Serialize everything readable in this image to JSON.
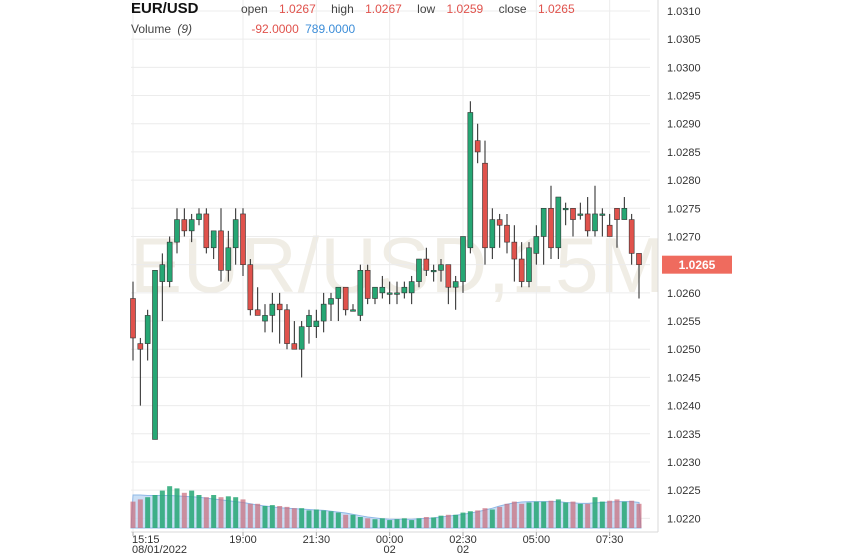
{
  "header": {
    "symbol": "EUR/USD",
    "open_label": "open",
    "open_value": "1.0267",
    "high_label": "high",
    "high_value": "1.0267",
    "low_label": "low",
    "low_value": "1.0259",
    "close_label": "close",
    "close_value": "1.0265",
    "volume_label": "Volume",
    "volume_period": "(9)",
    "volume_value1": "-92.0000",
    "volume_value2": "789.0000"
  },
  "watermark": "EUR/USD,15M",
  "colors": {
    "up": "#26a774",
    "down": "#e0524c",
    "volume_area": "#b8d4f2",
    "price_badge": "#ef6b5e"
  },
  "chart_data": {
    "type": "candlestick",
    "instrument": "EUR/USD",
    "timeframe": "15M",
    "y_axis": {
      "ylim": [
        1.0218,
        1.0312
      ],
      "ticks": [
        "1.0310",
        "1.0305",
        "1.0300",
        "1.0295",
        "1.0290",
        "1.0285",
        "1.0280",
        "1.0275",
        "1.0270",
        "1.0265",
        "1.0260",
        "1.0255",
        "1.0250",
        "1.0245",
        "1.0240",
        "1.0235",
        "1.0230",
        "1.0225",
        "1.0220"
      ],
      "current_price": "1.0265"
    },
    "x_axis": {
      "ticks": [
        {
          "index": 0,
          "label": "15:15",
          "sublabel": "08/01/2022"
        },
        {
          "index": 15,
          "label": "19:00",
          "sublabel": ""
        },
        {
          "index": 25,
          "label": "21:30",
          "sublabel": ""
        },
        {
          "index": 35,
          "label": "00:00",
          "sublabel": "02"
        },
        {
          "index": 45,
          "label": "02:30",
          "sublabel": "02"
        },
        {
          "index": 55,
          "label": "05:00",
          "sublabel": ""
        },
        {
          "index": 65,
          "label": "07:30",
          "sublabel": ""
        }
      ]
    },
    "candles": [
      [
        1.0259,
        1.0262,
        1.0248,
        1.0252
      ],
      [
        1.0251,
        1.0252,
        1.024,
        1.025
      ],
      [
        1.0251,
        1.0257,
        1.0248,
        1.0256
      ],
      [
        1.0234,
        1.0264,
        1.0234,
        1.0264
      ],
      [
        1.0262,
        1.0267,
        1.0255,
        1.0265
      ],
      [
        1.0262,
        1.027,
        1.0261,
        1.0269
      ],
      [
        1.0269,
        1.0275,
        1.0267,
        1.0273
      ],
      [
        1.0273,
        1.0275,
        1.027,
        1.0271
      ],
      [
        1.0271,
        1.0274,
        1.0269,
        1.0273
      ],
      [
        1.0273,
        1.0275,
        1.0272,
        1.0274
      ],
      [
        1.0274,
        1.0275,
        1.0267,
        1.0268
      ],
      [
        1.0268,
        1.0271,
        1.0266,
        1.0271
      ],
      [
        1.0271,
        1.0275,
        1.0262,
        1.0264
      ],
      [
        1.0264,
        1.0271,
        1.0262,
        1.0268
      ],
      [
        1.0268,
        1.0275,
        1.0265,
        1.0273
      ],
      [
        1.0274,
        1.0275,
        1.0263,
        1.0265
      ],
      [
        1.0265,
        1.0266,
        1.0256,
        1.0257
      ],
      [
        1.0257,
        1.0261,
        1.0256,
        1.0256
      ],
      [
        1.0255,
        1.0258,
        1.0253,
        1.0256
      ],
      [
        1.0256,
        1.026,
        1.0253,
        1.0258
      ],
      [
        1.0258,
        1.026,
        1.0251,
        1.0257
      ],
      [
        1.0257,
        1.0258,
        1.025,
        1.0251
      ],
      [
        1.0251,
        1.0255,
        1.025,
        1.025
      ],
      [
        1.025,
        1.0255,
        1.0245,
        1.0254
      ],
      [
        1.0254,
        1.0257,
        1.0251,
        1.0256
      ],
      [
        1.0254,
        1.0257,
        1.0252,
        1.0255
      ],
      [
        1.0255,
        1.026,
        1.0253,
        1.0258
      ],
      [
        1.0258,
        1.026,
        1.0255,
        1.0259
      ],
      [
        1.0259,
        1.0261,
        1.0255,
        1.0261
      ],
      [
        1.0261,
        1.0261,
        1.0256,
        1.0257
      ],
      [
        1.0257,
        1.0258,
        1.0257,
        1.0257
      ],
      [
        1.0256,
        1.0265,
        1.0255,
        1.0264
      ],
      [
        1.0264,
        1.0265,
        1.0258,
        1.0259
      ],
      [
        1.0259,
        1.0261,
        1.0258,
        1.0261
      ],
      [
        1.026,
        1.0263,
        1.0259,
        1.0261
      ],
      [
        1.026,
        1.0262,
        1.0258,
        1.026
      ],
      [
        1.026,
        1.0262,
        1.0258,
        1.026
      ],
      [
        1.026,
        1.0262,
        1.0259,
        1.0261
      ],
      [
        1.026,
        1.0263,
        1.0258,
        1.0262
      ],
      [
        1.0262,
        1.0266,
        1.0261,
        1.0266
      ],
      [
        1.0266,
        1.0268,
        1.0263,
        1.0264
      ],
      [
        1.0264,
        1.0265,
        1.0262,
        1.0264
      ],
      [
        1.0264,
        1.0266,
        1.0262,
        1.0265
      ],
      [
        1.0265,
        1.0265,
        1.0258,
        1.0261
      ],
      [
        1.0261,
        1.0263,
        1.0257,
        1.0262
      ],
      [
        1.0262,
        1.027,
        1.026,
        1.027
      ],
      [
        1.0268,
        1.0294,
        1.0267,
        1.0292
      ],
      [
        1.0287,
        1.029,
        1.0283,
        1.0285
      ],
      [
        1.0283,
        1.0287,
        1.0265,
        1.0268
      ],
      [
        1.0268,
        1.0275,
        1.0266,
        1.0273
      ],
      [
        1.0273,
        1.0274,
        1.0268,
        1.0272
      ],
      [
        1.0272,
        1.0274,
        1.0267,
        1.0269
      ],
      [
        1.0269,
        1.0272,
        1.0262,
        1.0266
      ],
      [
        1.0266,
        1.0269,
        1.0261,
        1.0262
      ],
      [
        1.0262,
        1.0269,
        1.0261,
        1.0268
      ],
      [
        1.0267,
        1.0272,
        1.0265,
        1.027
      ],
      [
        1.027,
        1.0275,
        1.0265,
        1.0275
      ],
      [
        1.0275,
        1.0279,
        1.0266,
        1.0268
      ],
      [
        1.0268,
        1.0277,
        1.0266,
        1.0277
      ],
      [
        1.0275,
        1.0276,
        1.0272,
        1.0275
      ],
      [
        1.0275,
        1.0275,
        1.027,
        1.0273
      ],
      [
        1.0274,
        1.0276,
        1.0273,
        1.0274
      ],
      [
        1.0274,
        1.0277,
        1.027,
        1.0271
      ],
      [
        1.0271,
        1.0279,
        1.027,
        1.0274
      ],
      [
        1.0274,
        1.0275,
        1.027,
        1.0274
      ],
      [
        1.0272,
        1.0274,
        1.027,
        1.027
      ],
      [
        1.0275,
        1.0275,
        1.0268,
        1.0273
      ],
      [
        1.0273,
        1.0277,
        1.0273,
        1.0275
      ],
      [
        1.0273,
        1.0274,
        1.0265,
        1.0267
      ],
      [
        1.0267,
        1.0267,
        1.0259,
        1.0265
      ]
    ],
    "volume_level": [
      0.6,
      0.65,
      0.7,
      0.75,
      0.85,
      0.95,
      0.9,
      0.8,
      0.85,
      0.75,
      0.7,
      0.75,
      0.7,
      0.72,
      0.7,
      0.65,
      0.55,
      0.55,
      0.5,
      0.52,
      0.5,
      0.48,
      0.45,
      0.45,
      0.4,
      0.42,
      0.4,
      0.38,
      0.35,
      0.3,
      0.3,
      0.25,
      0.22,
      0.2,
      0.22,
      0.18,
      0.2,
      0.22,
      0.18,
      0.22,
      0.25,
      0.24,
      0.28,
      0.3,
      0.3,
      0.35,
      0.38,
      0.4,
      0.45,
      0.42,
      0.48,
      0.55,
      0.6,
      0.55,
      0.58,
      0.6,
      0.6,
      0.62,
      0.65,
      0.58,
      0.6,
      0.55,
      0.55,
      0.7,
      0.6,
      0.62,
      0.65,
      0.6,
      0.62,
      0.55
    ],
    "volume_sma_level": [
      0.75,
      0.75,
      0.74,
      0.74,
      0.74,
      0.74,
      0.73,
      0.72,
      0.71,
      0.7,
      0.68,
      0.66,
      0.64,
      0.62,
      0.6,
      0.58,
      0.55,
      0.52,
      0.5,
      0.48,
      0.46,
      0.45,
      0.44,
      0.43,
      0.42,
      0.41,
      0.4,
      0.38,
      0.36,
      0.34,
      0.31,
      0.28,
      0.25,
      0.23,
      0.21,
      0.2,
      0.2,
      0.2,
      0.2,
      0.21,
      0.22,
      0.23,
      0.25,
      0.27,
      0.29,
      0.31,
      0.34,
      0.37,
      0.41,
      0.45,
      0.5,
      0.54,
      0.57,
      0.59,
      0.6,
      0.6,
      0.6,
      0.6,
      0.6,
      0.58,
      0.57,
      0.56,
      0.56,
      0.57,
      0.58,
      0.59,
      0.6,
      0.6,
      0.6,
      0.58
    ]
  }
}
